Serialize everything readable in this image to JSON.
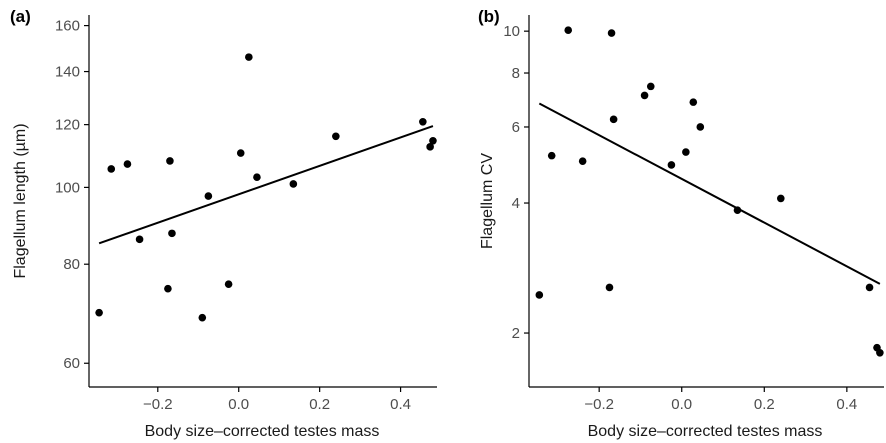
{
  "chart_data": [
    {
      "type": "scatter",
      "panel_label": "(a)",
      "xlabel": "Body size–corrected testes mass",
      "ylabel": "Flagellum length (µm)",
      "y_scale": "log",
      "xlim": [
        -0.37,
        0.49
      ],
      "ylim": [
        56,
        165
      ],
      "x_ticks": [
        -0.2,
        0.0,
        0.2,
        0.4
      ],
      "x_tick_labels": [
        "−0.2",
        "0.0",
        "0.2",
        "0.4"
      ],
      "y_ticks": [
        60,
        80,
        100,
        120,
        140,
        160
      ],
      "y_tick_labels": [
        "60",
        "80",
        "100",
        "120",
        "140",
        "160"
      ],
      "grid": false,
      "legend": "none",
      "point_color": "#000000",
      "points": [
        {
          "x": -0.345,
          "y": 69.5
        },
        {
          "x": -0.315,
          "y": 105.5
        },
        {
          "x": -0.275,
          "y": 107
        },
        {
          "x": -0.245,
          "y": 86
        },
        {
          "x": -0.175,
          "y": 74.5
        },
        {
          "x": -0.17,
          "y": 108
        },
        {
          "x": -0.165,
          "y": 87.5
        },
        {
          "x": -0.09,
          "y": 68.5
        },
        {
          "x": -0.075,
          "y": 97.5
        },
        {
          "x": -0.025,
          "y": 75.5
        },
        {
          "x": 0.005,
          "y": 110.5
        },
        {
          "x": 0.025,
          "y": 146
        },
        {
          "x": 0.045,
          "y": 103
        },
        {
          "x": 0.135,
          "y": 101
        },
        {
          "x": 0.24,
          "y": 116
        },
        {
          "x": 0.455,
          "y": 121
        },
        {
          "x": 0.473,
          "y": 112.5
        },
        {
          "x": 0.48,
          "y": 114.5
        }
      ],
      "fit_line": [
        {
          "x": -0.345,
          "y": 85
        },
        {
          "x": 0.48,
          "y": 119.5
        }
      ]
    },
    {
      "type": "scatter",
      "panel_label": "(b)",
      "xlabel": "Body size–corrected testes mass",
      "ylabel": "Flagellum CV",
      "y_scale": "log",
      "xlim": [
        -0.37,
        0.49
      ],
      "ylim": [
        1.5,
        10.9
      ],
      "x_ticks": [
        -0.2,
        0.0,
        0.2,
        0.4
      ],
      "x_tick_labels": [
        "−0.2",
        "0.0",
        "0.2",
        "0.4"
      ],
      "y_ticks": [
        2,
        4,
        6,
        8,
        10
      ],
      "y_tick_labels": [
        "2",
        "4",
        "6",
        "8",
        "10"
      ],
      "grid": false,
      "legend": "none",
      "point_color": "#000000",
      "points": [
        {
          "x": -0.345,
          "y": 2.45
        },
        {
          "x": -0.315,
          "y": 5.15
        },
        {
          "x": -0.275,
          "y": 10.05
        },
        {
          "x": -0.24,
          "y": 5.0
        },
        {
          "x": -0.17,
          "y": 9.9
        },
        {
          "x": -0.175,
          "y": 2.55
        },
        {
          "x": -0.165,
          "y": 6.25
        },
        {
          "x": -0.09,
          "y": 7.1
        },
        {
          "x": -0.075,
          "y": 7.45
        },
        {
          "x": -0.025,
          "y": 4.9
        },
        {
          "x": 0.01,
          "y": 5.25
        },
        {
          "x": 0.028,
          "y": 6.85
        },
        {
          "x": 0.045,
          "y": 6.0
        },
        {
          "x": 0.135,
          "y": 3.85
        },
        {
          "x": 0.24,
          "y": 4.1
        },
        {
          "x": 0.455,
          "y": 2.55
        },
        {
          "x": 0.473,
          "y": 1.85
        },
        {
          "x": 0.48,
          "y": 1.8
        }
      ],
      "fit_line": [
        {
          "x": -0.345,
          "y": 6.8
        },
        {
          "x": 0.48,
          "y": 2.6
        }
      ]
    }
  ]
}
